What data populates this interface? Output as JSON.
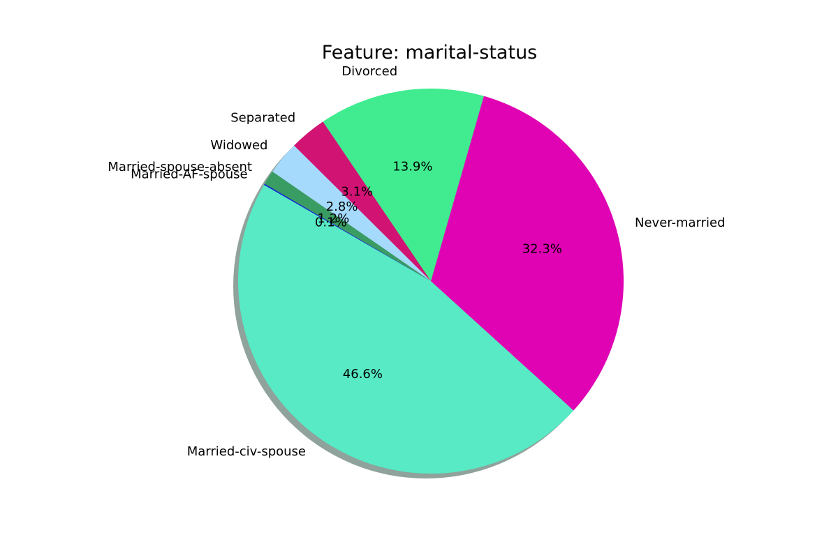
{
  "chart_data": {
    "type": "pie",
    "title": "Feature: marital-status",
    "categories": [
      "Married-civ-spouse",
      "Never-married",
      "Divorced",
      "Separated",
      "Widowed",
      "Married-spouse-absent",
      "Married-AF-spouse"
    ],
    "values": [
      46.6,
      32.3,
      13.9,
      3.1,
      2.8,
      1.2,
      0.1
    ],
    "value_labels": [
      "46.6%",
      "32.3%",
      "13.9%",
      "3.1%",
      "2.8%",
      "1.2%",
      "0.1%"
    ],
    "colors": [
      "#57eac5",
      "#df03b3",
      "#40ec8f",
      "#d11473",
      "#a5dafd",
      "#399c63",
      "#0c23da"
    ],
    "shadow": true,
    "legend": "none"
  }
}
